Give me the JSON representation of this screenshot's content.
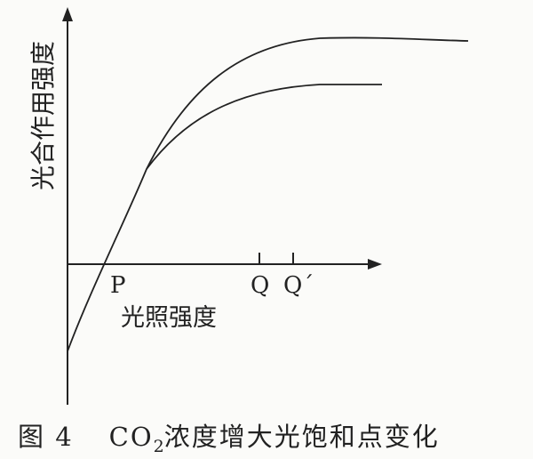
{
  "diagram": {
    "y_axis_label": "光合作用强度",
    "x_axis_label": "光照强度",
    "points": {
      "P": "P",
      "Q": "Q",
      "Q_prime": "Q´"
    }
  },
  "caption": {
    "figure_number": "图 4",
    "text_prefix": "CO",
    "subscript": "2",
    "text_suffix": "浓度增大光饱和点变化"
  }
}
